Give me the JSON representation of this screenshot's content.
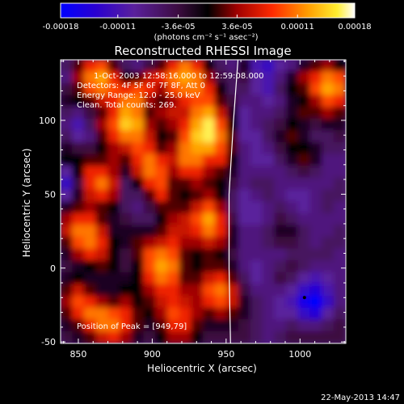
{
  "chart_data": {
    "type": "heatmap",
    "title": "Reconstructed RHESSI Image",
    "xlabel": "Heliocentric X (arcsec)",
    "ylabel": "Heliocentric Y (arcsec)",
    "xlim": [
      838,
      1031
    ],
    "ylim": [
      -51,
      141
    ],
    "x_ticks": [
      "850",
      "900",
      "950",
      "1000"
    ],
    "x_tick_values": [
      850,
      900,
      950,
      1000
    ],
    "y_ticks": [
      "-50",
      "0",
      "50",
      "100"
    ],
    "y_tick_values": [
      -50,
      0,
      50,
      100
    ],
    "colorbar": {
      "tick_labels": [
        "-0.00018",
        "-0.00011",
        "-3.6e-05",
        "3.6e-05",
        "0.00011",
        "0.00018"
      ],
      "tick_values": [
        -0.00018,
        -0.00011,
        -3.6e-05,
        3.6e-05,
        0.00011,
        0.00018
      ],
      "range": [
        -0.00018,
        0.00018
      ],
      "unit_label": "(photons cm⁻² s⁻¹ asec⁻²)",
      "colormap": "blue-purple-red-yellow-white"
    },
    "annotations": {
      "time_range": "1-Oct-2003 12:58:16.000 to 12:59:08.000",
      "detectors": "Detectors: 4F 5F 6F 7F 8F, Att 0",
      "energy_range": "Energy Range: 12.0 - 25.0 keV",
      "clean": "Clean.    Total counts: 269.",
      "peak": "Position of Peak = [949,79]"
    },
    "peak_position": [
      949,
      79
    ],
    "limb": {
      "description": "solar limb line",
      "color": "#ffffff",
      "points": [
        [
          958,
          141
        ],
        [
          955,
          100
        ],
        [
          952,
          50
        ],
        [
          952,
          0
        ],
        [
          953,
          -51
        ]
      ]
    },
    "field_grid": {
      "nx": 24,
      "ny": 24,
      "values_normalized": [
        [
          0.35,
          0.55,
          0.7,
          0.75,
          0.55,
          0.35,
          0.3,
          0.4,
          0.55,
          0.7,
          0.8,
          0.7,
          0.5,
          0.35,
          0.3,
          0.45,
          0.2,
          0.15,
          0.25,
          0.3,
          0.45,
          0.55,
          0.6,
          0.5
        ],
        [
          0.3,
          0.6,
          0.8,
          0.85,
          0.7,
          0.5,
          0.55,
          0.65,
          0.7,
          0.8,
          0.85,
          0.8,
          0.6,
          0.4,
          0.35,
          0.4,
          0.25,
          0.2,
          0.3,
          0.45,
          0.6,
          0.7,
          0.8,
          0.75
        ],
        [
          0.4,
          0.55,
          0.75,
          0.8,
          0.75,
          0.7,
          0.75,
          0.7,
          0.6,
          0.75,
          0.8,
          0.8,
          0.7,
          0.5,
          0.35,
          0.35,
          0.25,
          0.2,
          0.35,
          0.5,
          0.55,
          0.75,
          0.85,
          0.8
        ],
        [
          0.45,
          0.5,
          0.55,
          0.65,
          0.7,
          0.8,
          0.8,
          0.6,
          0.55,
          0.6,
          0.7,
          0.75,
          0.75,
          0.55,
          0.4,
          0.3,
          0.3,
          0.25,
          0.3,
          0.45,
          0.5,
          0.6,
          0.75,
          0.7
        ],
        [
          0.35,
          0.3,
          0.4,
          0.55,
          0.7,
          0.85,
          0.8,
          0.55,
          0.6,
          0.65,
          0.65,
          0.8,
          0.85,
          0.65,
          0.45,
          0.25,
          0.3,
          0.3,
          0.35,
          0.45,
          0.55,
          0.55,
          0.6,
          0.55
        ],
        [
          0.3,
          0.2,
          0.35,
          0.6,
          0.75,
          0.9,
          0.85,
          0.6,
          0.55,
          0.6,
          0.7,
          0.85,
          0.95,
          0.75,
          0.5,
          0.25,
          0.3,
          0.35,
          0.4,
          0.5,
          0.45,
          0.4,
          0.45,
          0.45
        ],
        [
          0.35,
          0.25,
          0.3,
          0.55,
          0.7,
          0.8,
          0.8,
          0.65,
          0.5,
          0.55,
          0.75,
          0.9,
          0.95,
          0.8,
          0.55,
          0.25,
          0.25,
          0.35,
          0.45,
          0.55,
          0.45,
          0.35,
          0.35,
          0.4
        ],
        [
          0.45,
          0.4,
          0.4,
          0.5,
          0.6,
          0.65,
          0.75,
          0.7,
          0.55,
          0.6,
          0.8,
          0.85,
          0.85,
          0.75,
          0.55,
          0.3,
          0.25,
          0.3,
          0.4,
          0.5,
          0.5,
          0.45,
          0.35,
          0.35
        ],
        [
          0.5,
          0.5,
          0.55,
          0.55,
          0.6,
          0.55,
          0.7,
          0.8,
          0.7,
          0.65,
          0.8,
          0.8,
          0.7,
          0.7,
          0.5,
          0.3,
          0.25,
          0.25,
          0.35,
          0.45,
          0.55,
          0.45,
          0.3,
          0.3
        ],
        [
          0.25,
          0.5,
          0.7,
          0.7,
          0.6,
          0.45,
          0.65,
          0.8,
          0.75,
          0.6,
          0.7,
          0.7,
          0.6,
          0.55,
          0.45,
          0.3,
          0.3,
          0.3,
          0.3,
          0.35,
          0.4,
          0.35,
          0.3,
          0.3
        ],
        [
          0.15,
          0.4,
          0.7,
          0.8,
          0.65,
          0.35,
          0.5,
          0.7,
          0.75,
          0.55,
          0.55,
          0.6,
          0.55,
          0.5,
          0.4,
          0.3,
          0.35,
          0.35,
          0.3,
          0.3,
          0.3,
          0.3,
          0.3,
          0.35
        ],
        [
          0.25,
          0.45,
          0.65,
          0.7,
          0.6,
          0.35,
          0.35,
          0.55,
          0.7,
          0.55,
          0.5,
          0.55,
          0.6,
          0.5,
          0.35,
          0.25,
          0.3,
          0.35,
          0.3,
          0.25,
          0.25,
          0.3,
          0.35,
          0.35
        ],
        [
          0.45,
          0.55,
          0.6,
          0.55,
          0.5,
          0.35,
          0.3,
          0.4,
          0.55,
          0.55,
          0.55,
          0.65,
          0.75,
          0.6,
          0.35,
          0.25,
          0.25,
          0.3,
          0.35,
          0.3,
          0.25,
          0.3,
          0.35,
          0.3
        ],
        [
          0.6,
          0.7,
          0.7,
          0.55,
          0.45,
          0.4,
          0.35,
          0.35,
          0.5,
          0.6,
          0.65,
          0.75,
          0.85,
          0.7,
          0.4,
          0.25,
          0.25,
          0.3,
          0.4,
          0.35,
          0.3,
          0.3,
          0.3,
          0.3
        ],
        [
          0.65,
          0.8,
          0.8,
          0.65,
          0.45,
          0.45,
          0.45,
          0.45,
          0.55,
          0.65,
          0.65,
          0.7,
          0.8,
          0.7,
          0.45,
          0.3,
          0.3,
          0.35,
          0.45,
          0.45,
          0.35,
          0.3,
          0.3,
          0.35
        ],
        [
          0.55,
          0.75,
          0.8,
          0.7,
          0.5,
          0.45,
          0.55,
          0.6,
          0.65,
          0.7,
          0.6,
          0.6,
          0.65,
          0.6,
          0.45,
          0.3,
          0.3,
          0.35,
          0.4,
          0.4,
          0.35,
          0.3,
          0.35,
          0.35
        ],
        [
          0.45,
          0.6,
          0.7,
          0.65,
          0.5,
          0.4,
          0.55,
          0.75,
          0.8,
          0.75,
          0.55,
          0.5,
          0.55,
          0.5,
          0.4,
          0.3,
          0.3,
          0.3,
          0.3,
          0.35,
          0.35,
          0.35,
          0.35,
          0.3
        ],
        [
          0.4,
          0.45,
          0.5,
          0.55,
          0.5,
          0.4,
          0.5,
          0.75,
          0.85,
          0.8,
          0.55,
          0.5,
          0.55,
          0.55,
          0.45,
          0.3,
          0.25,
          0.3,
          0.35,
          0.4,
          0.35,
          0.3,
          0.3,
          0.3
        ],
        [
          0.45,
          0.5,
          0.45,
          0.45,
          0.45,
          0.45,
          0.5,
          0.7,
          0.8,
          0.75,
          0.55,
          0.55,
          0.65,
          0.7,
          0.55,
          0.35,
          0.25,
          0.3,
          0.4,
          0.35,
          0.25,
          0.2,
          0.25,
          0.3
        ],
        [
          0.55,
          0.65,
          0.55,
          0.45,
          0.45,
          0.5,
          0.5,
          0.6,
          0.7,
          0.7,
          0.6,
          0.6,
          0.75,
          0.8,
          0.65,
          0.4,
          0.3,
          0.3,
          0.3,
          0.25,
          0.15,
          0.1,
          0.2,
          0.3
        ],
        [
          0.6,
          0.75,
          0.7,
          0.6,
          0.55,
          0.6,
          0.5,
          0.55,
          0.65,
          0.7,
          0.65,
          0.6,
          0.7,
          0.75,
          0.65,
          0.45,
          0.35,
          0.3,
          0.25,
          0.2,
          0.05,
          0.0,
          0.15,
          0.3
        ],
        [
          0.55,
          0.7,
          0.8,
          0.8,
          0.75,
          0.7,
          0.55,
          0.5,
          0.6,
          0.75,
          0.7,
          0.6,
          0.55,
          0.6,
          0.55,
          0.45,
          0.35,
          0.3,
          0.25,
          0.25,
          0.15,
          0.1,
          0.25,
          0.35
        ],
        [
          0.45,
          0.55,
          0.7,
          0.8,
          0.8,
          0.7,
          0.55,
          0.45,
          0.55,
          0.7,
          0.7,
          0.55,
          0.45,
          0.45,
          0.45,
          0.4,
          0.35,
          0.3,
          0.3,
          0.35,
          0.3,
          0.3,
          0.35,
          0.4
        ],
        [
          0.4,
          0.45,
          0.55,
          0.65,
          0.7,
          0.6,
          0.45,
          0.4,
          0.5,
          0.6,
          0.6,
          0.5,
          0.4,
          0.4,
          0.4,
          0.4,
          0.35,
          0.3,
          0.35,
          0.4,
          0.4,
          0.4,
          0.4,
          0.4
        ]
      ]
    }
  },
  "footer": {
    "date_stamp": "22-May-2013 14:47"
  }
}
